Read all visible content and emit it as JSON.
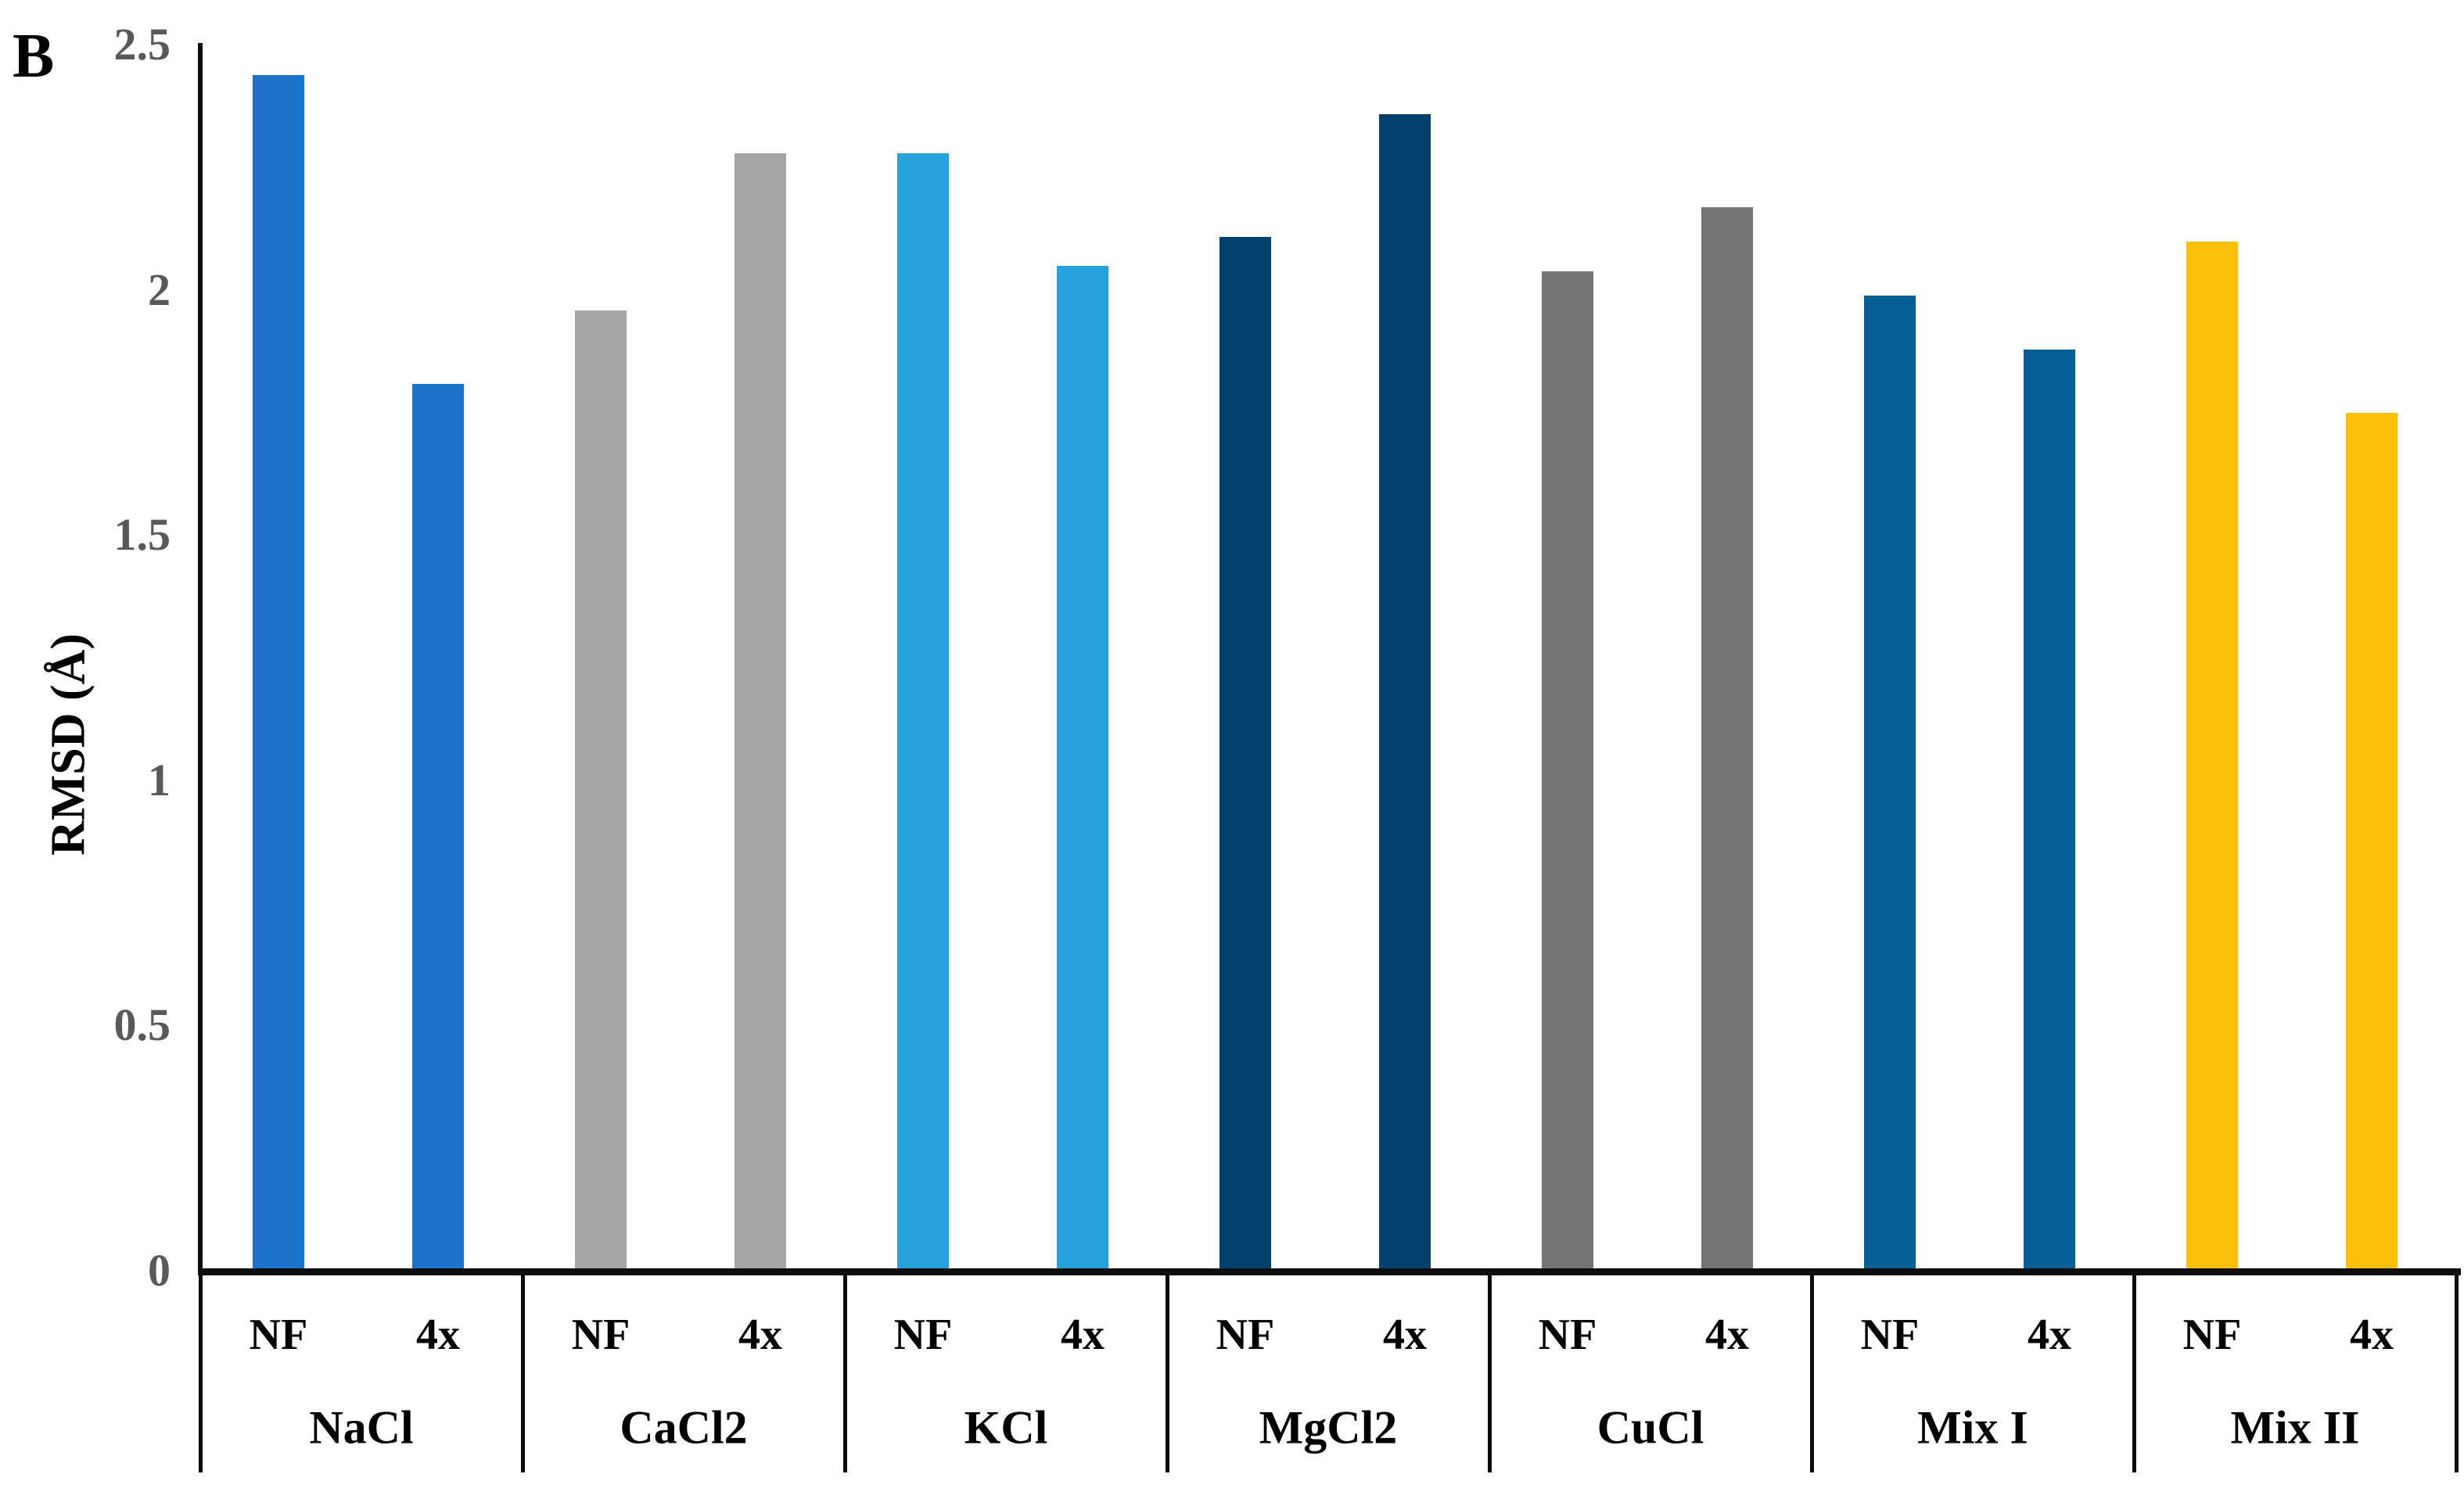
{
  "panel_label": "B",
  "chart_data": {
    "type": "bar",
    "title": "",
    "xlabel": "",
    "ylabel": "RMSD (Å)",
    "ylim": [
      0,
      2.5
    ],
    "ytick_values": [
      0,
      0.5,
      1,
      1.5,
      2,
      2.5
    ],
    "ytick_labels": [
      "0",
      "0.5",
      "1",
      "1.5",
      "2",
      "2.5"
    ],
    "grid": false,
    "legend": "none",
    "categories": [
      "NaCl",
      "CaCl2",
      "KCl",
      "MgCl2",
      "CuCl",
      "Mix I",
      "Mix II"
    ],
    "bar_labels": [
      "NF",
      "4x"
    ],
    "series": [
      {
        "name": "NF",
        "values": [
          2.44,
          1.96,
          2.28,
          2.11,
          2.04,
          1.99,
          2.1
        ]
      },
      {
        "name": "4x",
        "values": [
          1.81,
          2.28,
          2.05,
          2.36,
          2.17,
          1.88,
          1.75
        ]
      }
    ],
    "category_colors": [
      "#1d72c9",
      "#a6a6a6",
      "#28a2dc",
      "#04406e",
      "#757575",
      "#045f94",
      "#fdc00a"
    ],
    "axis_color": "#0d0d0d",
    "tick_label_color": "#595959"
  }
}
